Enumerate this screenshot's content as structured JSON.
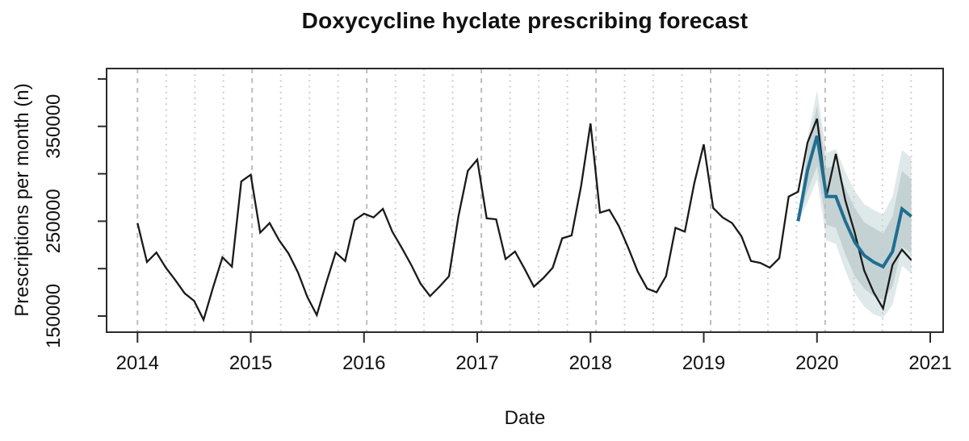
{
  "chart_data": {
    "type": "line",
    "title": "Doxycycline hyclate prescribing forecast",
    "xlabel": "Date",
    "ylabel": "Prescriptions per month (n)",
    "xlim": [
      2013.727,
      2021.114
    ],
    "ylim": [
      133000,
      411000
    ],
    "x_ticks": [
      2014,
      2015,
      2016,
      2017,
      2018,
      2019,
      2020,
      2021
    ],
    "x_tick_labels": [
      "2014",
      "2015",
      "2016",
      "2017",
      "2018",
      "2019",
      "2020",
      "2021"
    ],
    "y_ticks": [
      150000,
      200000,
      250000,
      300000,
      350000,
      400000
    ],
    "y_labeled_ticks": [
      150000,
      250000,
      350000
    ],
    "grid": {
      "major_interval_years": 1,
      "minor_interval_years": 0.25,
      "first": 2014,
      "last": 2020.75
    },
    "legend": "none",
    "series": [
      {
        "name": "observed-prescriptions",
        "start": "2014-01",
        "values": [
          248000,
          207000,
          217000,
          201000,
          188000,
          174000,
          166000,
          146000,
          180000,
          212000,
          202000,
          292000,
          299000,
          238000,
          248000,
          230000,
          216000,
          196000,
          170000,
          151000,
          185000,
          217000,
          208000,
          251000,
          258000,
          254000,
          263000,
          239000,
          222000,
          204000,
          184000,
          171000,
          181000,
          192000,
          255000,
          303000,
          315000,
          253000,
          252000,
          210000,
          218000,
          200000,
          181000,
          190000,
          201000,
          232000,
          235000,
          287000,
          353000,
          259000,
          262000,
          245000,
          222000,
          197000,
          179000,
          175000,
          192000,
          243000,
          239000,
          290000,
          331000,
          264000,
          254000,
          248000,
          234000,
          208000,
          206000,
          201000,
          211000,
          276000,
          281000,
          333000,
          358000,
          276000,
          321000,
          272000,
          238000,
          198000,
          175000,
          158000,
          204000,
          220000,
          209000
        ]
      },
      {
        "name": "forecast",
        "start": "2019-11",
        "values": [
          250000,
          304000,
          340000,
          276000,
          276000,
          250000,
          228000,
          214000,
          207000,
          202000,
          218000,
          263000,
          255000
        ],
        "bands": [
          {
            "name": "outer-confidence-band",
            "lower": [
              250000,
              270000,
              294000,
              230000,
              226000,
              198000,
              174000,
              160000,
              152000,
              148000,
              162000,
              203000,
              195000
            ],
            "upper": [
              250000,
              338000,
              388000,
              322000,
              326000,
              302000,
              282000,
              268000,
              262000,
              257000,
              276000,
              325000,
              317000
            ]
          },
          {
            "name": "inner-confidence-band",
            "lower": [
              250000,
              282000,
              308000,
              246000,
              243000,
              215000,
              192000,
              179000,
              171000,
              167000,
              181000,
              223000,
              216000
            ],
            "upper": [
              250000,
              326000,
              372000,
              306000,
              309000,
              285000,
              264000,
              249000,
              243000,
              237000,
              255000,
              303000,
              294000
            ]
          }
        ]
      }
    ],
    "colors": {
      "observed_line": "#1a1a1a",
      "forecast_line": "#1f6e91",
      "outer_band": "#dfe9e9",
      "inner_band": "#c4d2d4",
      "grid_major": "#bdbdbd",
      "grid_minor": "#c9c9c9",
      "axis": "#2b2b2b",
      "background": "#ffffff"
    }
  }
}
